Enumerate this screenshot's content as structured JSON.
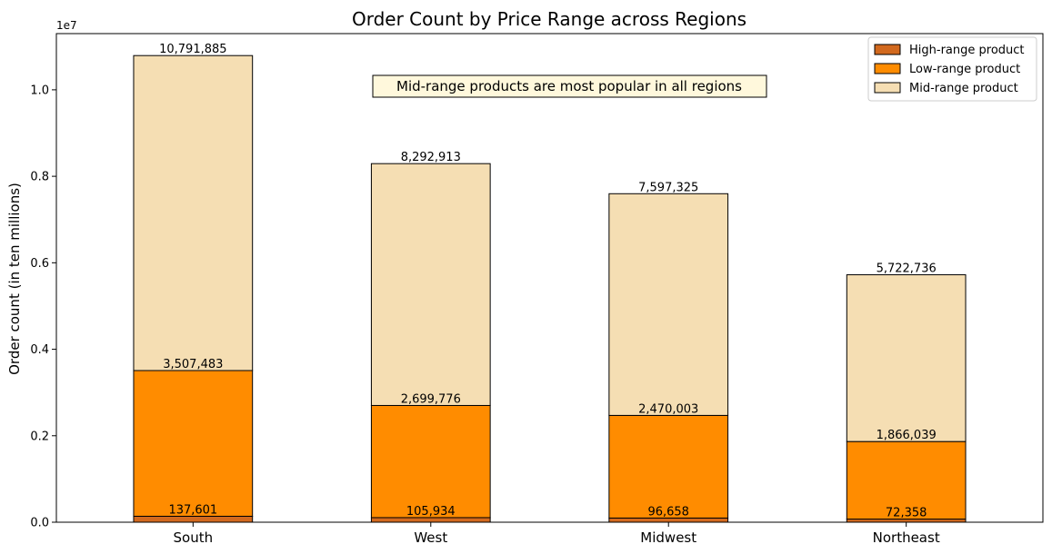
{
  "chart_data": {
    "type": "bar",
    "stacked": true,
    "title": "Order Count by Price Range across Regions",
    "xlabel": "",
    "ylabel": "Order count (in ten millions)",
    "y_offset_text": "1e7",
    "ylim": [
      0,
      11300000
    ],
    "yticks": [
      0,
      2000000,
      4000000,
      6000000,
      8000000,
      10000000
    ],
    "ytick_labels": [
      "0.0",
      "0.2",
      "0.4",
      "0.6",
      "0.8",
      "1.0"
    ],
    "categories": [
      "South",
      "West",
      "Midwest",
      "Northeast"
    ],
    "series": [
      {
        "name": "High-range product",
        "color": "#d2691e",
        "values": [
          137601,
          105934,
          96658,
          72358
        ],
        "labels": [
          "137,601",
          "105,934",
          "96,658",
          "72,358"
        ]
      },
      {
        "name": "Low-range product",
        "color": "#ff8c00",
        "values": [
          3369882,
          2593842,
          2373345,
          1793681
        ],
        "labels": [
          "3,507,483",
          "2,699,776",
          "2,470,003",
          "1,866,039"
        ]
      },
      {
        "name": "Mid-range product",
        "color": "#f5deb3",
        "values": [
          7284402,
          5593137,
          5127322,
          3856697
        ],
        "labels": [
          "10,791,885",
          "8,292,913",
          "7,597,325",
          "5,722,736"
        ]
      }
    ],
    "annotation": {
      "text": "Mid-range products are most popular in all regions",
      "background": "#fff8dc"
    },
    "legend_position": "top-right",
    "grid": false
  }
}
